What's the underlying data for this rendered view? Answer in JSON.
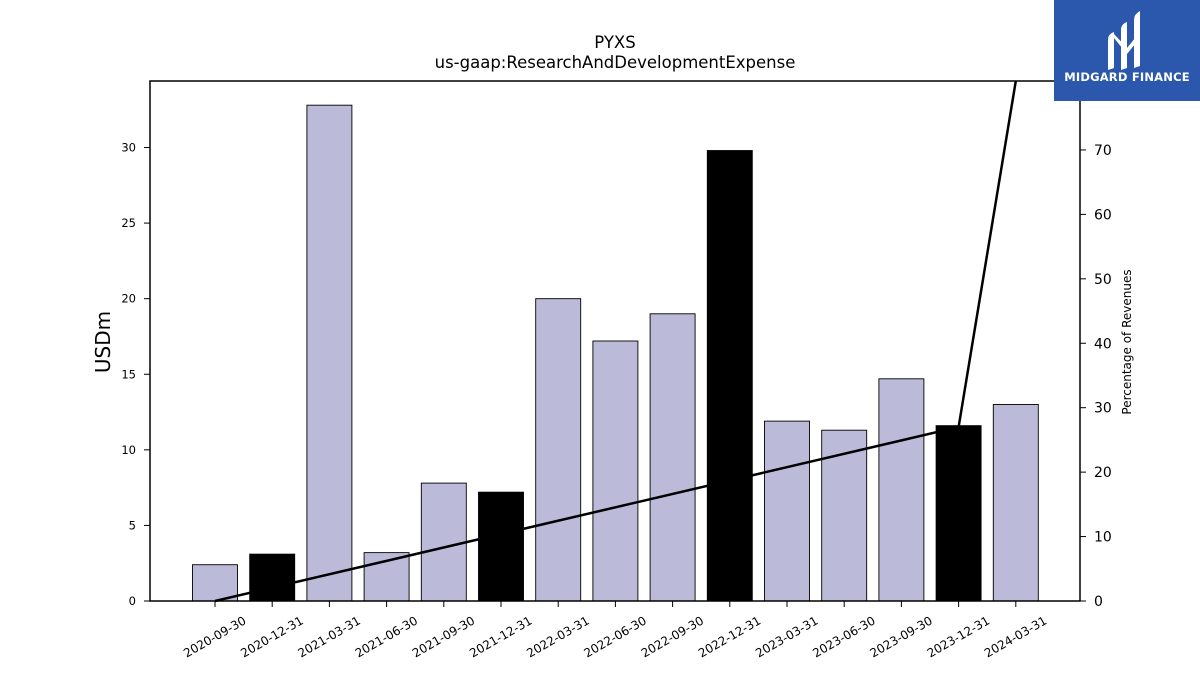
{
  "chart_data": {
    "type": "bar",
    "title": "PYXS",
    "subtitle": "us-gaap:ResearchAndDevelopmentExpense",
    "ylabel": "USDm",
    "y2label": "Percentage of Revenues",
    "categories": [
      "2020-09-30",
      "2020-12-31",
      "2021-03-31",
      "2021-06-30",
      "2021-09-30",
      "2021-12-31",
      "2022-03-31",
      "2022-06-30",
      "2022-09-30",
      "2022-12-31",
      "2023-03-31",
      "2023-06-30",
      "2023-09-30",
      "2023-12-31",
      "2024-03-31"
    ],
    "values": [
      2.4,
      3.1,
      32.8,
      3.2,
      7.8,
      7.2,
      20.0,
      17.2,
      19.0,
      29.8,
      11.9,
      11.3,
      14.7,
      11.6,
      13.0
    ],
    "highlight": [
      false,
      true,
      false,
      false,
      false,
      true,
      false,
      false,
      false,
      true,
      false,
      false,
      false,
      true,
      false
    ],
    "bar_color": "#bcbad9",
    "highlight_color": "#000000",
    "ylim": [
      0,
      34.4
    ],
    "yticks": [
      0,
      5,
      10,
      15,
      20,
      25,
      30
    ],
    "y2lim": [
      0,
      80.7
    ],
    "y2ticks": [
      0,
      10,
      20,
      30,
      40,
      50,
      60,
      70
    ],
    "percentage_line": [
      {
        "x": "2020-09-30",
        "y": 0
      },
      {
        "x": "2023-12-31",
        "y": 27
      },
      {
        "x": "2024-03-31",
        "y": 80.7
      }
    ],
    "grid": false
  },
  "logo": {
    "text": "MIDGARD FINANCE",
    "color": "#2b58ad"
  }
}
